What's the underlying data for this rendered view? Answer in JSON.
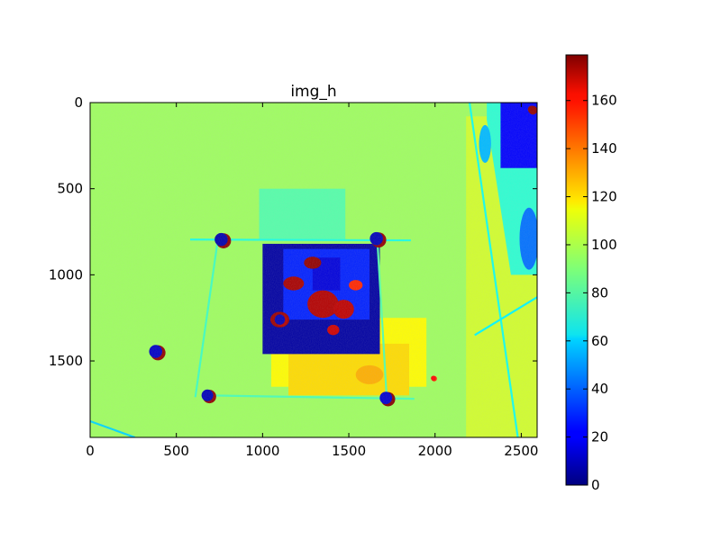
{
  "chart_data": [
    {
      "type": "heatmap",
      "title": "img_h",
      "xlabel": "",
      "ylabel": "",
      "image_width": 2592,
      "image_height": 1944,
      "xlim": [
        0,
        2592
      ],
      "ylim": [
        1944,
        0
      ],
      "x_ticks": [
        0,
        500,
        1000,
        1500,
        2000,
        2500
      ],
      "y_ticks": [
        0,
        500,
        1000,
        1500
      ],
      "colormap": "jet",
      "colorbar": {
        "min": 0,
        "max": 179,
        "ticks": [
          0,
          20,
          40,
          60,
          80,
          100,
          120,
          140,
          160
        ]
      },
      "background_value": 95,
      "regions": [
        {
          "kind": "rect",
          "x0": 0,
          "x1": 2592,
          "y0": 0,
          "y1": 1944,
          "value": 95
        },
        {
          "kind": "rect",
          "x0": 980,
          "x1": 1480,
          "y0": 500,
          "y1": 800,
          "value": 82
        },
        {
          "kind": "rect",
          "x0": 1050,
          "x1": 1950,
          "y0": 1250,
          "y1": 1650,
          "value": 112
        },
        {
          "kind": "rect",
          "x0": 1150,
          "x1": 1850,
          "y0": 1400,
          "y1": 1700,
          "value": 118
        },
        {
          "kind": "rect",
          "x0": 2180,
          "x1": 2592,
          "y0": 80,
          "y1": 1944,
          "value": 104
        },
        {
          "kind": "quad",
          "points": [
            [
              2300,
              0
            ],
            [
              2592,
              0
            ],
            [
              2592,
              1000
            ],
            [
              2440,
              1000
            ],
            [
              2300,
              100
            ]
          ],
          "value": 75
        },
        {
          "kind": "rect",
          "x0": 2380,
          "x1": 2592,
          "y0": 0,
          "y1": 380,
          "value": 22
        },
        {
          "kind": "ellipse",
          "cx": 2545,
          "cy": 790,
          "rx": 55,
          "ry": 180,
          "value": 42
        },
        {
          "kind": "ellipse",
          "cx": 2290,
          "cy": 240,
          "rx": 35,
          "ry": 110,
          "value": 55
        },
        {
          "kind": "rect",
          "x0": 1000,
          "x1": 1680,
          "y0": 820,
          "y1": 1460,
          "value": 6
        },
        {
          "kind": "rect",
          "x0": 1120,
          "x1": 1620,
          "y0": 850,
          "y1": 1260,
          "value": 28
        },
        {
          "kind": "rect",
          "x0": 1290,
          "x1": 1450,
          "y0": 900,
          "y1": 1090,
          "value": 16
        },
        {
          "kind": "ellipse",
          "cx": 1180,
          "cy": 1050,
          "rx": 60,
          "ry": 40,
          "value": 172
        },
        {
          "kind": "ellipse",
          "cx": 1350,
          "cy": 1170,
          "rx": 90,
          "ry": 80,
          "value": 170
        },
        {
          "kind": "ellipse",
          "cx": 1470,
          "cy": 1200,
          "rx": 60,
          "ry": 55,
          "value": 168
        },
        {
          "kind": "ellipse",
          "cx": 1100,
          "cy": 1260,
          "rx": 55,
          "ry": 45,
          "value": 174
        },
        {
          "kind": "ellipse",
          "cx": 1290,
          "cy": 930,
          "rx": 50,
          "ry": 35,
          "value": 176
        },
        {
          "kind": "ellipse",
          "cx": 1540,
          "cy": 1060,
          "rx": 40,
          "ry": 30,
          "value": 150
        },
        {
          "kind": "ellipse",
          "cx": 1410,
          "cy": 1320,
          "rx": 35,
          "ry": 30,
          "value": 165
        },
        {
          "kind": "ellipse",
          "cx": 1620,
          "cy": 1580,
          "rx": 80,
          "ry": 55,
          "value": 126
        },
        {
          "kind": "line",
          "x0": 580,
          "y0": 795,
          "x1": 1860,
          "y1": 800,
          "value": 72
        },
        {
          "kind": "line",
          "x0": 740,
          "y0": 800,
          "x1": 610,
          "y1": 1710,
          "value": 78
        },
        {
          "kind": "line",
          "x0": 1665,
          "y0": 790,
          "x1": 1720,
          "y1": 1720,
          "value": 82
        },
        {
          "kind": "line",
          "x0": 670,
          "y0": 1700,
          "x1": 1880,
          "y1": 1720,
          "value": 80
        },
        {
          "kind": "line",
          "x0": 2200,
          "y0": 0,
          "x1": 2480,
          "y1": 1944,
          "value": 70
        },
        {
          "kind": "line",
          "x0": 0,
          "y0": 1850,
          "x1": 260,
          "y1": 1944,
          "value": 60
        },
        {
          "kind": "line",
          "x0": 2230,
          "y0": 1350,
          "x1": 2592,
          "y1": 1130,
          "value": 66
        },
        {
          "kind": "dot",
          "cx": 760,
          "cy": 795,
          "r": 38,
          "value": 8,
          "halo": 176
        },
        {
          "kind": "dot",
          "cx": 1660,
          "cy": 790,
          "r": 38,
          "value": 10,
          "halo": 176
        },
        {
          "kind": "dot",
          "cx": 380,
          "cy": 1445,
          "r": 38,
          "value": 12,
          "halo": 176
        },
        {
          "kind": "dot",
          "cx": 680,
          "cy": 1700,
          "r": 34,
          "value": 10,
          "halo": 176
        },
        {
          "kind": "dot",
          "cx": 1715,
          "cy": 1715,
          "r": 36,
          "value": 14,
          "halo": 178
        },
        {
          "kind": "dot",
          "cx": 2560,
          "cy": 40,
          "r": 22,
          "value": 176,
          "halo": 176
        },
        {
          "kind": "dot",
          "cx": 1990,
          "cy": 1600,
          "r": 14,
          "value": 156,
          "halo": 150
        },
        {
          "kind": "dot",
          "cx": 1100,
          "cy": 1260,
          "r": 30,
          "value": 10,
          "halo": 170
        }
      ]
    }
  ]
}
